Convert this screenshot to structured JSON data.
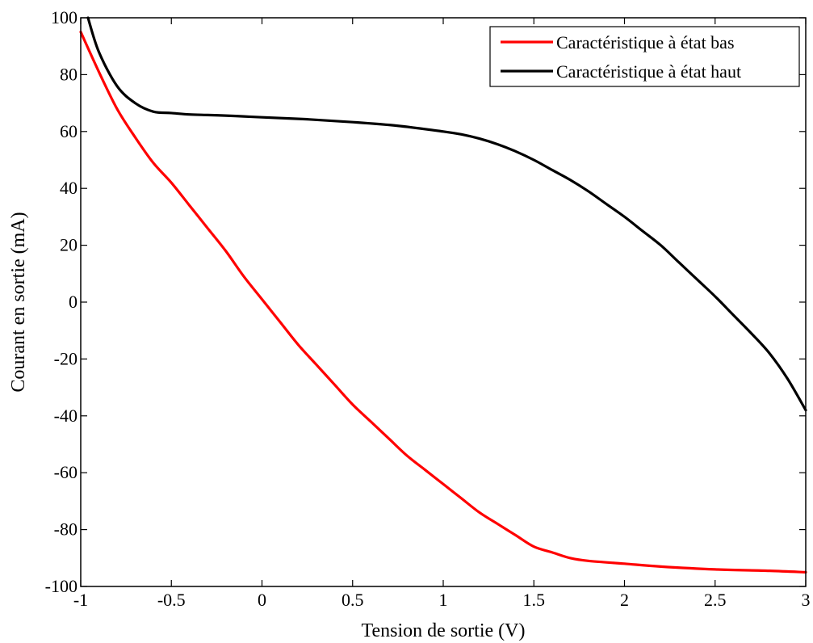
{
  "chart_data": {
    "type": "line",
    "title": "",
    "xlabel": "Tension de sortie (V)",
    "ylabel": "Courant en sortie (mA)",
    "xlim": [
      -1,
      3
    ],
    "ylim": [
      -100,
      100
    ],
    "xticks": [
      -1,
      -0.5,
      0,
      0.5,
      1,
      1.5,
      2,
      2.5,
      3
    ],
    "yticks": [
      -100,
      -80,
      -60,
      -40,
      -20,
      0,
      20,
      40,
      60,
      80,
      100
    ],
    "xtick_labels": [
      "-1",
      "-0.5",
      "0",
      "0.5",
      "1",
      "1.5",
      "2",
      "2.5",
      "3"
    ],
    "ytick_labels": [
      "-100",
      "-80",
      "-60",
      "-40",
      "-20",
      "0",
      "20",
      "40",
      "60",
      "80",
      "100"
    ],
    "grid": false,
    "legend_position": "top-right",
    "series": [
      {
        "name": "Caractéristique à état bas",
        "color": "#ff0000",
        "x": [
          -1.0,
          -0.9,
          -0.8,
          -0.7,
          -0.6,
          -0.5,
          -0.4,
          -0.3,
          -0.2,
          -0.1,
          0.0,
          0.1,
          0.2,
          0.3,
          0.4,
          0.5,
          0.6,
          0.7,
          0.8,
          0.9,
          1.0,
          1.1,
          1.2,
          1.3,
          1.4,
          1.5,
          1.6,
          1.7,
          1.8,
          2.0,
          2.2,
          2.5,
          2.8,
          3.0
        ],
        "y": [
          95,
          81,
          68,
          58,
          49,
          42,
          34,
          26,
          18,
          9,
          1,
          -7,
          -15,
          -22,
          -29,
          -36,
          -42,
          -48,
          -54,
          -59,
          -64,
          -69,
          -74,
          -78,
          -82,
          -86,
          -88,
          -90,
          -91,
          -92,
          -93,
          -94,
          -94.5,
          -95
        ]
      },
      {
        "name": "Caractéristique à état haut",
        "color": "#000000",
        "x": [
          -0.96,
          -0.9,
          -0.8,
          -0.7,
          -0.6,
          -0.5,
          -0.4,
          -0.3,
          -0.2,
          -0.1,
          0.0,
          0.25,
          0.5,
          0.75,
          1.0,
          1.1,
          1.2,
          1.3,
          1.4,
          1.5,
          1.6,
          1.7,
          1.8,
          1.9,
          2.0,
          2.1,
          2.2,
          2.3,
          2.4,
          2.5,
          2.6,
          2.7,
          2.8,
          2.9,
          3.0
        ],
        "y": [
          100,
          88,
          76,
          70,
          67,
          66.5,
          66,
          65.8,
          65.6,
          65.3,
          65,
          64.3,
          63.3,
          62,
          60,
          59,
          57.5,
          55.5,
          53,
          50,
          46.5,
          43,
          39,
          34.5,
          30,
          25,
          20,
          14,
          8,
          2,
          -4.5,
          -11,
          -18,
          -27,
          -38
        ]
      }
    ]
  }
}
